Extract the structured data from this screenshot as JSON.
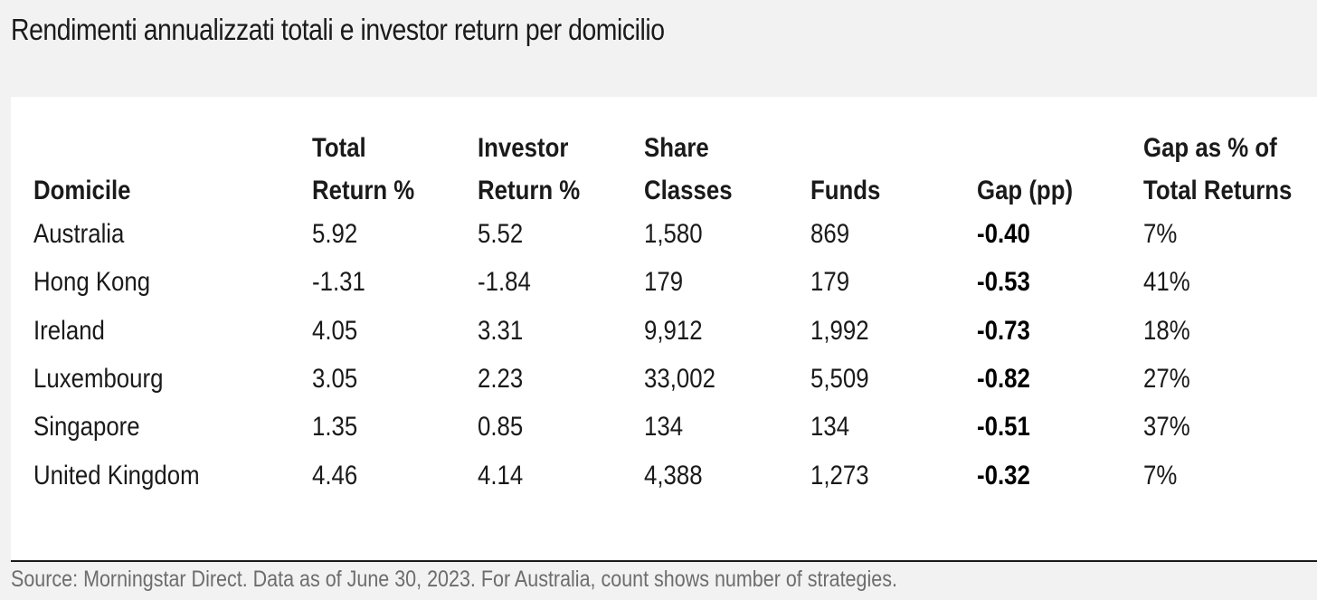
{
  "title": "Rendimenti annualizzati totali e investor return per domicilio",
  "table": {
    "headers": [
      {
        "line1": "",
        "line2": "Domicile"
      },
      {
        "line1": "Total",
        "line2": "Return %"
      },
      {
        "line1": "Investor",
        "line2": "Return %"
      },
      {
        "line1": "Share",
        "line2": "Classes"
      },
      {
        "line1": "",
        "line2": "Funds"
      },
      {
        "line1": "",
        "line2": "Gap (pp)"
      },
      {
        "line1": "Gap as % of",
        "line2": "Total Returns"
      }
    ],
    "rows": [
      {
        "domicile": "Australia",
        "total_return": "5.92",
        "investor_return": "5.52",
        "share_classes": "1,580",
        "funds": "869",
        "gap": "-0.40",
        "gap_pct": "7%"
      },
      {
        "domicile": "Hong Kong",
        "total_return": "-1.31",
        "investor_return": "-1.84",
        "share_classes": "179",
        "funds": "179",
        "gap": "-0.53",
        "gap_pct": "41%"
      },
      {
        "domicile": "Ireland",
        "total_return": "4.05",
        "investor_return": "3.31",
        "share_classes": "9,912",
        "funds": "1,992",
        "gap": "-0.73",
        "gap_pct": "18%"
      },
      {
        "domicile": "Luxembourg",
        "total_return": "3.05",
        "investor_return": "2.23",
        "share_classes": "33,002",
        "funds": "5,509",
        "gap": "-0.82",
        "gap_pct": "27%"
      },
      {
        "domicile": "Singapore",
        "total_return": "1.35",
        "investor_return": "0.85",
        "share_classes": "134",
        "funds": "134",
        "gap": "-0.51",
        "gap_pct": "37%"
      },
      {
        "domicile": "United Kingdom",
        "total_return": "4.46",
        "investor_return": "4.14",
        "share_classes": "4,388",
        "funds": "1,273",
        "gap": "-0.32",
        "gap_pct": "7%"
      }
    ]
  },
  "source": "Source: Morningstar Direct. Data as of June 30, 2023. For Australia, count shows number of strategies."
}
